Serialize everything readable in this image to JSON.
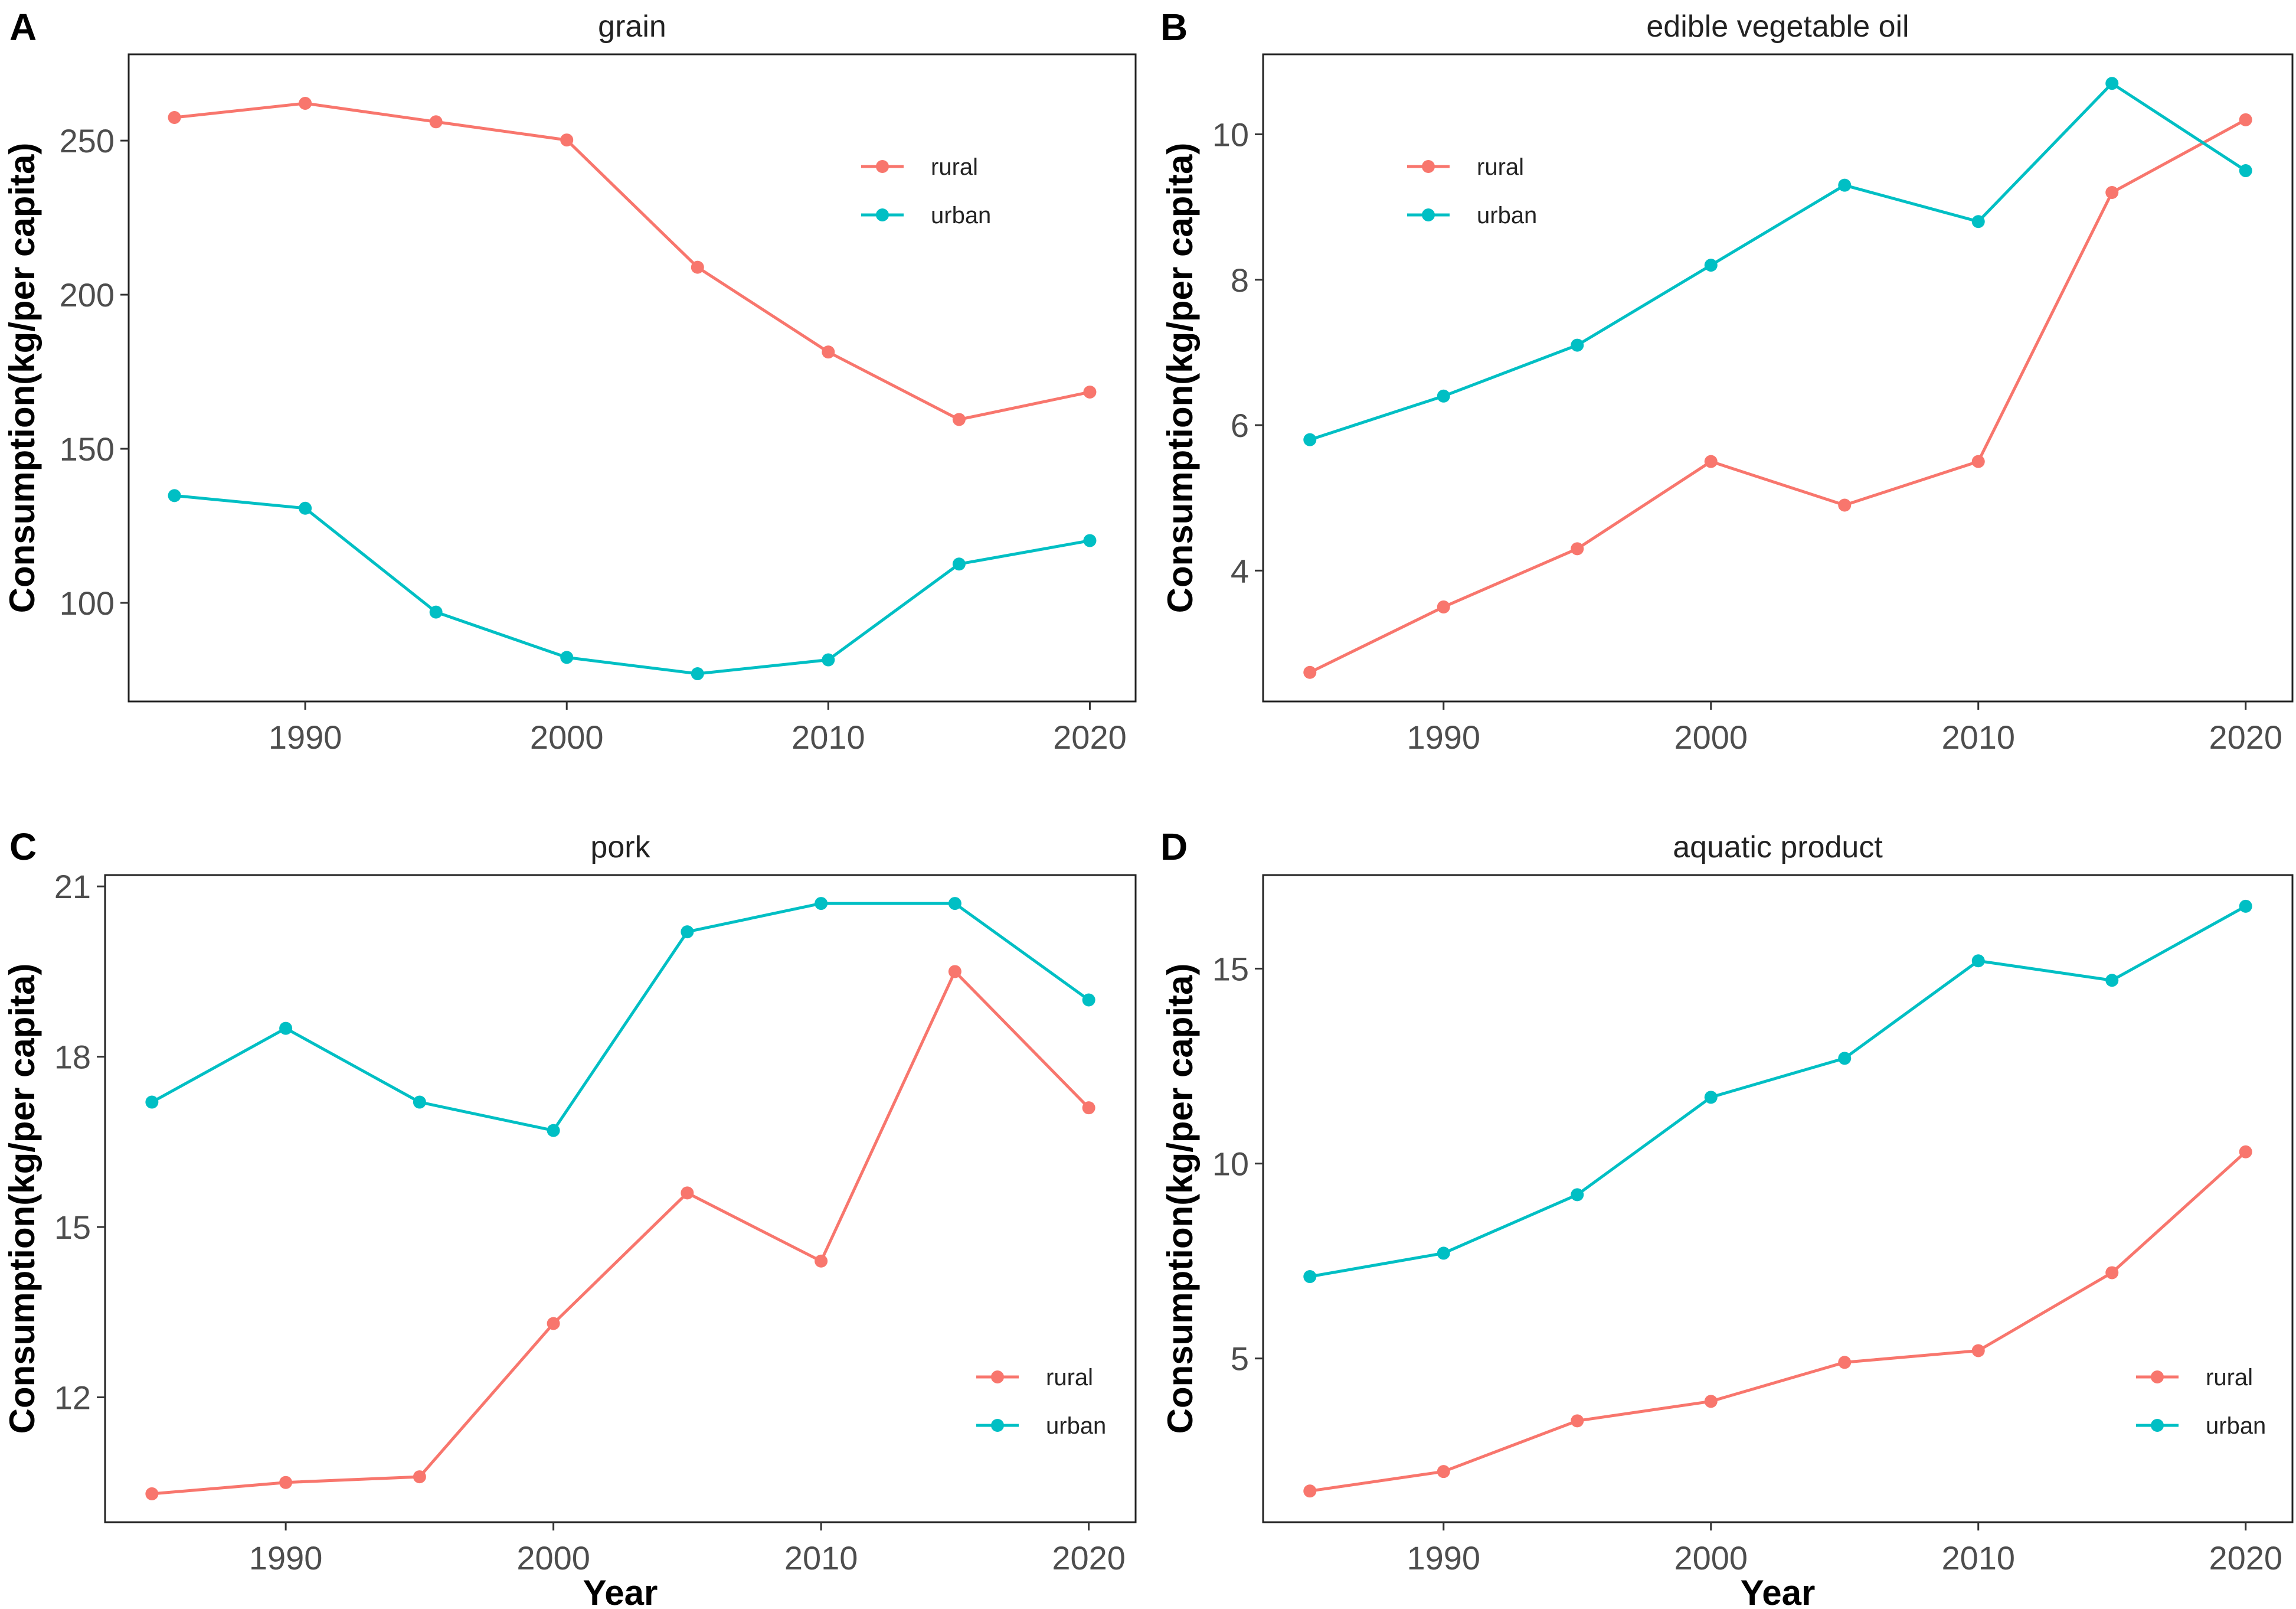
{
  "chart_data": [
    {
      "type": "line",
      "panel_label": "A",
      "title": "grain",
      "xlabel": "",
      "ylabel": "Consumption(kg/per capita)",
      "x": [
        1985,
        1990,
        1995,
        2000,
        2005,
        2010,
        2015,
        2020
      ],
      "xticks": [
        1990,
        2000,
        2010,
        2020
      ],
      "ylim": [
        68,
        278
      ],
      "yticks": [
        100,
        150,
        200,
        250
      ],
      "legend_position": "top-right",
      "series": [
        {
          "name": "rural",
          "color": "#F8766D",
          "values": [
            257.5,
            262.1,
            256.1,
            250.2,
            208.9,
            181.4,
            159.5,
            168.4
          ]
        },
        {
          "name": "urban",
          "color": "#00BFC4",
          "values": [
            134.8,
            130.7,
            97.0,
            82.3,
            77.0,
            81.5,
            112.6,
            120.2
          ]
        }
      ]
    },
    {
      "type": "line",
      "panel_label": "B",
      "title": "edible vegetable oil",
      "xlabel": "",
      "ylabel": "Consumption(kg/per capita)",
      "x": [
        1985,
        1990,
        1995,
        2000,
        2005,
        2010,
        2015,
        2020
      ],
      "xticks": [
        1990,
        2000,
        2010,
        2020
      ],
      "ylim": [
        2.2,
        11.1
      ],
      "yticks": [
        4,
        6,
        8,
        10
      ],
      "legend_position": "top-left",
      "series": [
        {
          "name": "rural",
          "color": "#F8766D",
          "values": [
            2.6,
            3.5,
            4.3,
            5.5,
            4.9,
            5.5,
            9.2,
            10.2
          ]
        },
        {
          "name": "urban",
          "color": "#00BFC4",
          "values": [
            5.8,
            6.4,
            7.1,
            8.2,
            9.3,
            8.8,
            10.7,
            9.5
          ]
        }
      ]
    },
    {
      "type": "line",
      "panel_label": "C",
      "title": "pork",
      "xlabel": "Year",
      "ylabel": "Consumption(kg/per capita)",
      "x": [
        1985,
        1990,
        1995,
        2000,
        2005,
        2010,
        2015,
        2020
      ],
      "xticks": [
        1990,
        2000,
        2010,
        2020
      ],
      "ylim": [
        9.8,
        21.2
      ],
      "yticks": [
        12,
        15,
        18,
        21
      ],
      "legend_position": "bottom-right",
      "series": [
        {
          "name": "rural",
          "color": "#F8766D",
          "values": [
            10.3,
            10.5,
            10.6,
            13.3,
            15.6,
            14.4,
            19.5,
            17.1
          ]
        },
        {
          "name": "urban",
          "color": "#00BFC4",
          "values": [
            17.2,
            18.5,
            17.2,
            16.7,
            20.2,
            20.7,
            20.7,
            19.0
          ]
        }
      ]
    },
    {
      "type": "line",
      "panel_label": "D",
      "title": "aquatic product",
      "xlabel": "Year",
      "ylabel": "Consumption(kg/per capita)",
      "x": [
        1985,
        1990,
        1995,
        2000,
        2005,
        2010,
        2015,
        2020
      ],
      "xticks": [
        1990,
        2000,
        2010,
        2020
      ],
      "ylim": [
        0.8,
        17.4
      ],
      "yticks": [
        5,
        10,
        15
      ],
      "legend_position": "bottom-right",
      "series": [
        {
          "name": "rural",
          "color": "#F8766D",
          "values": [
            1.6,
            2.1,
            3.4,
            3.9,
            4.9,
            5.2,
            7.2,
            10.3
          ]
        },
        {
          "name": "urban",
          "color": "#00BFC4",
          "values": [
            7.1,
            7.7,
            9.2,
            11.7,
            12.7,
            15.2,
            14.7,
            16.6
          ]
        }
      ]
    }
  ]
}
